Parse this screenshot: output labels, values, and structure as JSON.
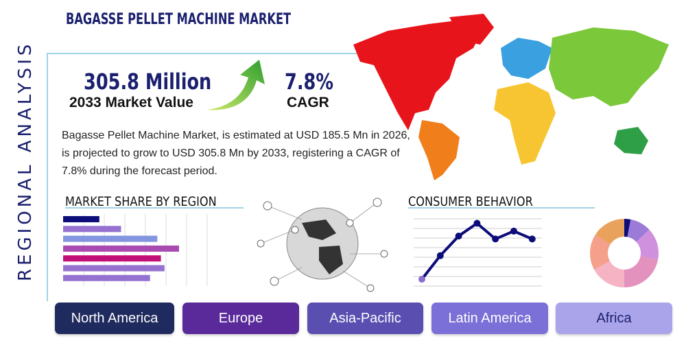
{
  "title": "BAGASSE PELLET MACHINE MARKET",
  "side_label": "REGIONAL ANALYSIS",
  "market_value": {
    "value": "305.8 Million",
    "label": "2033 Market Value"
  },
  "cagr": {
    "value": "7.8%",
    "label": "CAGR"
  },
  "description": "Bagasse Pellet Machine Market, is estimated at USD 185.5 Mn in 2026, is projected to grow to USD 305.8 Mn by 2033, registering a CAGR of 7.8% during the forecast period.",
  "sections": {
    "share": "MARKET SHARE BY REGION",
    "consumer": "CONSUMER BEHAVIOR"
  },
  "regions": [
    {
      "label": "North America",
      "color": "#1f2a5e"
    },
    {
      "label": "Europe",
      "color": "#5b2a9a"
    },
    {
      "label": "Asia-Pacific",
      "color": "#5a4fb0"
    },
    {
      "label": "Latin America",
      "color": "#7b6fd8"
    },
    {
      "label": "Africa",
      "color": "#aaa5ea"
    }
  ],
  "chart_data": [
    {
      "type": "bar",
      "orientation": "horizontal",
      "grid": true,
      "xlim": [
        0,
        7
      ],
      "values": [
        2,
        3.2,
        5.2,
        6.4,
        5.4,
        5.6,
        4.8
      ],
      "colors": [
        "#0c0c7a",
        "#9672d0",
        "#8395e0",
        "#a94ab0",
        "#c20f76",
        "#9672d0",
        "#9672d0"
      ]
    },
    {
      "type": "line",
      "grid": true,
      "ylim": [
        0,
        7
      ],
      "values": [
        0.7,
        3.1,
        5.1,
        6.4,
        4.8,
        5.6,
        4.8
      ],
      "color": "#0c0c7a"
    },
    {
      "type": "pie",
      "donut": true,
      "values": [
        3,
        10,
        15,
        22,
        17,
        17,
        16
      ],
      "colors": [
        "#0c0c7a",
        "#9b7ad8",
        "#cf90de",
        "#e391bd",
        "#f6b3c4",
        "#f4a08a",
        "#e9a25b"
      ]
    }
  ]
}
